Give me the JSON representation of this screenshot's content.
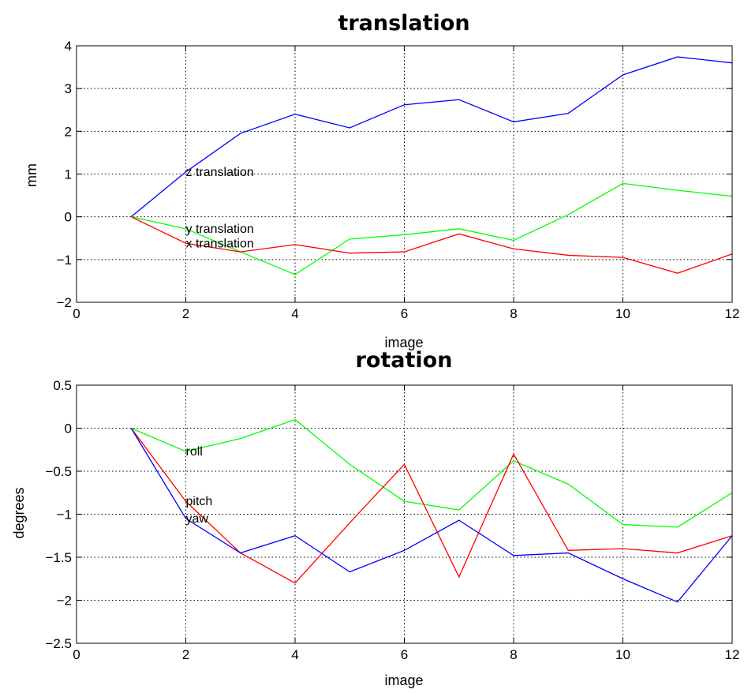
{
  "chart_data": [
    {
      "type": "line",
      "title": "translation",
      "xlabel": "image",
      "ylabel": "mm",
      "xlim": [
        0,
        12
      ],
      "ylim": [
        -2,
        4
      ],
      "xticks": [
        0,
        2,
        4,
        6,
        8,
        10,
        12
      ],
      "yticks": [
        -2,
        -1,
        0,
        1,
        2,
        3,
        4
      ],
      "xtick_labels": [
        "0",
        "2",
        "4",
        "6",
        "8",
        "10",
        "12"
      ],
      "ytick_labels": [
        "−2",
        "−1",
        "0",
        "1",
        "2",
        "3",
        "4"
      ],
      "grid": true,
      "x": [
        1,
        2,
        3,
        4,
        5,
        6,
        7,
        8,
        9,
        10,
        11,
        12
      ],
      "series": [
        {
          "name": "z translation",
          "color": "#0000ff",
          "values": [
            0,
            1.05,
            1.95,
            2.4,
            2.08,
            2.62,
            2.74,
            2.22,
            2.42,
            3.32,
            3.74,
            3.6
          ]
        },
        {
          "name": "y translation",
          "color": "#00ff00",
          "values": [
            0,
            -0.28,
            -0.82,
            -1.35,
            -0.52,
            -0.42,
            -0.28,
            -0.55,
            0.05,
            0.78,
            0.62,
            0.48
          ]
        },
        {
          "name": "x translation",
          "color": "#ff0000",
          "values": [
            0,
            -0.62,
            -0.82,
            -0.65,
            -0.85,
            -0.82,
            -0.4,
            -0.75,
            -0.9,
            -0.95,
            -1.32,
            -0.87
          ]
        }
      ],
      "annotations": [
        {
          "text": "z translation",
          "x": 2,
          "y": 1.05
        },
        {
          "text": "y translation",
          "x": 2,
          "y": -0.28
        },
        {
          "text": "x translation",
          "x": 2,
          "y": -0.62
        }
      ]
    },
    {
      "type": "line",
      "title": "rotation",
      "xlabel": "image",
      "ylabel": "degrees",
      "xlim": [
        0,
        12
      ],
      "ylim": [
        -2.5,
        0.5
      ],
      "xticks": [
        0,
        2,
        4,
        6,
        8,
        10,
        12
      ],
      "yticks": [
        -2.5,
        -2,
        -1.5,
        -1,
        -0.5,
        0,
        0.5
      ],
      "xtick_labels": [
        "0",
        "2",
        "4",
        "6",
        "8",
        "10",
        "12"
      ],
      "ytick_labels": [
        "−2.5",
        "−2",
        "−1.5",
        "−1",
        "−0.5",
        "0",
        "0.5"
      ],
      "grid": true,
      "x": [
        1,
        2,
        3,
        4,
        5,
        6,
        7,
        8,
        9,
        10,
        11,
        12
      ],
      "series": [
        {
          "name": "roll",
          "color": "#00ff00",
          "values": [
            0,
            -0.27,
            -0.12,
            0.1,
            -0.42,
            -0.85,
            -0.95,
            -0.38,
            -0.65,
            -1.12,
            -1.15,
            -0.75
          ]
        },
        {
          "name": "pitch",
          "color": "#ff0000",
          "values": [
            0,
            -0.85,
            -1.45,
            -1.8,
            -1.1,
            -0.42,
            -1.73,
            -0.3,
            -1.42,
            -1.4,
            -1.45,
            -1.25
          ]
        },
        {
          "name": "yaw",
          "color": "#0000ff",
          "values": [
            0,
            -1.05,
            -1.45,
            -1.25,
            -1.67,
            -1.42,
            -1.07,
            -1.48,
            -1.45,
            -1.75,
            -2.02,
            -1.25
          ]
        }
      ],
      "annotations": [
        {
          "text": "roll",
          "x": 2,
          "y": -0.27
        },
        {
          "text": "pitch",
          "x": 2,
          "y": -0.85
        },
        {
          "text": "yaw",
          "x": 2,
          "y": -1.05
        }
      ]
    }
  ]
}
